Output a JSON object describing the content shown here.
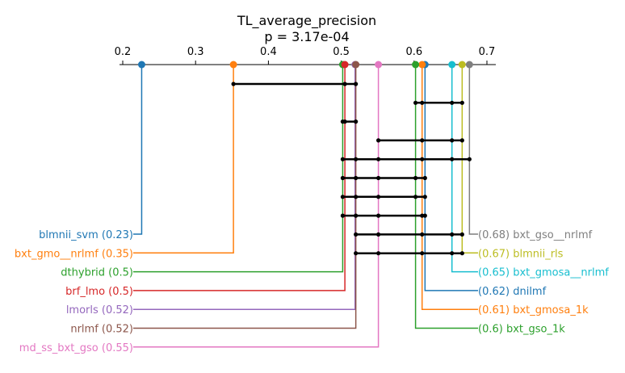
{
  "chart_data": {
    "type": "critical-difference",
    "title": "TL_average_precision",
    "subtitle": "p = 3.17e-04",
    "xlim": [
      0.2,
      0.7
    ],
    "ticks": [
      "0.2",
      "0.3",
      "0.4",
      "0.5",
      "0.6",
      "0.7"
    ],
    "tick_values": [
      0.2,
      0.3,
      0.4,
      0.5,
      0.6,
      0.7
    ],
    "left_methods": [
      {
        "name": "blmnii_svm",
        "value": 0.226,
        "label": "blmnii_svm (0.23)",
        "color": "#1f77b4"
      },
      {
        "name": "bxt_gmo__nrlmf",
        "value": 0.352,
        "label": "bxt_gmo__nrlmf (0.35)",
        "color": "#ff7f0e"
      },
      {
        "name": "dthybrid",
        "value": 0.502,
        "label": "dthybrid (0.5)",
        "color": "#2ca02c"
      },
      {
        "name": "brf_lmo",
        "value": 0.505,
        "label": "brf_lmo (0.5)",
        "color": "#d62728"
      },
      {
        "name": "lmorls",
        "value": 0.519,
        "label": "lmorls (0.52)",
        "color": "#9467bd"
      },
      {
        "name": "nrlmf",
        "value": 0.52,
        "label": "nrlmf (0.52)",
        "color": "#8c564b"
      },
      {
        "name": "md_ss_bxt_gso",
        "value": 0.551,
        "label": "md_ss_bxt_gso (0.55)",
        "color": "#e377c2"
      }
    ],
    "right_methods": [
      {
        "name": "bxt_gso__nrlmf",
        "value": 0.676,
        "label": "(0.68) bxt_gso__nrlmf",
        "color": "#7f7f7f"
      },
      {
        "name": "blmnii_rls",
        "value": 0.666,
        "label": "(0.67) blmnii_rls",
        "color": "#bcbd22"
      },
      {
        "name": "bxt_gmosa__nrlmf",
        "value": 0.652,
        "label": "(0.65) bxt_gmosa__nrlmf",
        "color": "#17becf"
      },
      {
        "name": "dnilmf",
        "value": 0.615,
        "label": "(0.62) dnilmf",
        "color": "#1f77b4"
      },
      {
        "name": "bxt_gmosa_1k",
        "value": 0.611,
        "label": "(0.61) bxt_gmosa_1k",
        "color": "#ff7f0e"
      },
      {
        "name": "bxt_gso_1k",
        "value": 0.602,
        "label": "(0.6) bxt_gso_1k",
        "color": "#2ca02c"
      }
    ],
    "cliques": [
      {
        "values": [
          0.352,
          0.505,
          0.52
        ]
      },
      {
        "values": [
          0.602,
          0.611,
          0.652,
          0.666
        ]
      },
      {
        "values": [
          0.502,
          0.505,
          0.52
        ]
      },
      {
        "values": [
          0.551,
          0.611,
          0.652,
          0.666
        ]
      },
      {
        "values": [
          0.502,
          0.52,
          0.551,
          0.611,
          0.652,
          0.676
        ]
      },
      {
        "values": [
          0.502,
          0.52,
          0.551,
          0.602,
          0.615
        ]
      },
      {
        "values": [
          0.502,
          0.52,
          0.551,
          0.602,
          0.615
        ]
      },
      {
        "values": [
          0.502,
          0.52,
          0.551,
          0.611,
          0.615
        ]
      },
      {
        "values": [
          0.52,
          0.551,
          0.611,
          0.652,
          0.666
        ]
      },
      {
        "values": [
          0.52,
          0.551,
          0.611,
          0.652,
          0.666
        ]
      }
    ]
  }
}
